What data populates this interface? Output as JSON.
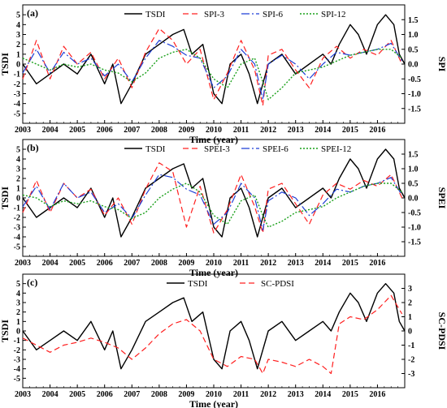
{
  "chart_data": [
    {
      "type": "line",
      "panel_label": "(a)",
      "xlabel": "Time (year)",
      "ylabel_left": "TSDI",
      "ylabel_right": "SPI",
      "x_ticks": [
        "2003",
        "2004",
        "2005",
        "2006",
        "2007",
        "2008",
        "2009",
        "2010",
        "2011",
        "2012",
        "2013",
        "2014",
        "2015",
        "2016"
      ],
      "xlim": [
        2003,
        2017
      ],
      "ylim_left": [
        -6,
        6
      ],
      "ylim_right": [
        -2,
        2
      ],
      "y_left_ticks": [
        -5,
        -4,
        -3,
        -2,
        -1,
        0,
        1,
        2,
        3,
        4,
        5
      ],
      "y_right_ticks": [
        -1.5,
        -1.0,
        -0.5,
        0.0,
        0.5,
        1.0,
        1.5
      ],
      "y_right_tick_labels": [
        "-1.5",
        "-1.0",
        "-0.5",
        "0.0",
        "0.5",
        "1.0",
        "1.5"
      ],
      "legend_position": "top",
      "series": [
        {
          "name": "TSDI",
          "axis": "left",
          "color": "#000000",
          "dash": "",
          "width": 1.4,
          "x": [
            2003.0,
            2003.5,
            2004.0,
            2004.5,
            2005.0,
            2005.5,
            2006.0,
            2006.3,
            2006.6,
            2007.0,
            2007.5,
            2008.0,
            2008.5,
            2008.9,
            2009.2,
            2009.6,
            2010.0,
            2010.3,
            2010.6,
            2011.0,
            2011.3,
            2011.6,
            2012.0,
            2012.5,
            2013.0,
            2013.5,
            2014.0,
            2014.3,
            2014.6,
            2015.0,
            2015.3,
            2015.6,
            2016.0,
            2016.3,
            2016.6,
            2016.8,
            2017.0
          ],
          "values": [
            0,
            -2,
            -1,
            0,
            -1,
            1,
            -2,
            0,
            -4,
            -2,
            1,
            2,
            3,
            3.5,
            1,
            2,
            -3,
            -4,
            0,
            1,
            -1,
            -4,
            0,
            1,
            -1,
            0,
            1,
            0,
            2,
            4,
            3,
            1,
            4,
            5,
            4,
            1,
            0
          ]
        },
        {
          "name": "SPI-3",
          "axis": "right",
          "color": "#ff2020",
          "dash": "7,4",
          "width": 1.2,
          "x": [
            2003.0,
            2003.5,
            2004.0,
            2004.5,
            2005.0,
            2005.5,
            2006.0,
            2006.5,
            2007.0,
            2007.5,
            2008.0,
            2008.5,
            2009.0,
            2009.5,
            2010.0,
            2010.5,
            2011.0,
            2011.5,
            2011.8,
            2012.0,
            2012.5,
            2013.0,
            2013.5,
            2014.0,
            2014.5,
            2015.0,
            2015.5,
            2016.0,
            2016.5,
            2016.9
          ],
          "values": [
            -0.5,
            0.8,
            -0.5,
            0.6,
            0.0,
            0.4,
            -0.5,
            0.2,
            -0.8,
            0.4,
            1.2,
            0.8,
            0.0,
            0.5,
            -1.2,
            -0.3,
            0.8,
            -0.2,
            -1.4,
            0.3,
            0.5,
            -0.2,
            -0.8,
            0.2,
            0.6,
            0.2,
            0.5,
            0.3,
            0.8,
            0.0
          ]
        },
        {
          "name": "SPI-6",
          "axis": "right",
          "color": "#1f3fd6",
          "dash": "10,3,2,3",
          "width": 1.2,
          "x": [
            2003.0,
            2003.5,
            2004.0,
            2004.5,
            2005.0,
            2005.5,
            2006.0,
            2006.5,
            2007.0,
            2007.5,
            2008.0,
            2008.5,
            2009.0,
            2009.5,
            2010.0,
            2010.5,
            2011.0,
            2011.5,
            2011.8,
            2012.0,
            2012.5,
            2013.0,
            2013.5,
            2014.0,
            2014.5,
            2015.0,
            2015.5,
            2016.0,
            2016.5,
            2016.9
          ],
          "values": [
            -0.3,
            0.5,
            -0.3,
            0.4,
            0.0,
            0.2,
            -0.4,
            0.0,
            -0.6,
            0.2,
            0.8,
            0.6,
            0.3,
            0.2,
            -0.8,
            -0.4,
            0.5,
            0.0,
            -1.2,
            0.0,
            0.3,
            0.0,
            -0.5,
            0.0,
            0.4,
            0.3,
            0.4,
            0.5,
            0.7,
            0.1
          ]
        },
        {
          "name": "SPI-12",
          "axis": "right",
          "color": "#1aa01a",
          "dash": "2,2",
          "width": 1.4,
          "x": [
            2003.0,
            2003.5,
            2004.0,
            2004.5,
            2005.0,
            2005.5,
            2006.0,
            2006.5,
            2007.0,
            2007.5,
            2008.0,
            2008.5,
            2009.0,
            2009.5,
            2010.0,
            2010.5,
            2011.0,
            2011.5,
            2011.8,
            2012.0,
            2012.5,
            2013.0,
            2013.5,
            2014.0,
            2014.5,
            2015.0,
            2015.5,
            2016.0,
            2016.5,
            2016.9
          ],
          "values": [
            0.2,
            0.0,
            -0.2,
            0.0,
            -0.1,
            0.0,
            -0.2,
            -0.3,
            -0.6,
            -0.3,
            0.2,
            0.4,
            0.5,
            0.2,
            -0.5,
            -0.8,
            0.0,
            0.2,
            -0.6,
            -1.2,
            -0.8,
            -0.3,
            -0.2,
            -0.1,
            0.1,
            0.3,
            0.4,
            0.5,
            0.5,
            0.2
          ]
        }
      ]
    },
    {
      "type": "line",
      "panel_label": "(b)",
      "xlabel": "Time (year)",
      "ylabel_left": "TSDI",
      "ylabel_right": "SPEI",
      "x_ticks": [
        "2003",
        "2004",
        "2005",
        "2006",
        "2007",
        "2008",
        "2009",
        "2010",
        "2011",
        "2012",
        "2013",
        "2014",
        "2015",
        "2016"
      ],
      "xlim": [
        2003,
        2017
      ],
      "ylim_left": [
        -6,
        6
      ],
      "ylim_right": [
        -2,
        2
      ],
      "y_left_ticks": [
        -5,
        -4,
        -3,
        -2,
        -1,
        0,
        1,
        2,
        3,
        4,
        5
      ],
      "y_right_ticks": [
        -1.5,
        -1.0,
        -0.5,
        0.0,
        0.5,
        1.0,
        1.5
      ],
      "y_right_tick_labels": [
        "-1.5",
        "-1.0",
        "-0.5",
        "0.0",
        "0.5",
        "1.0",
        "1.5"
      ],
      "legend_position": "top",
      "series": [
        {
          "name": "TSDI",
          "axis": "left",
          "color": "#000000",
          "dash": "",
          "width": 1.4,
          "x": [
            2003.0,
            2003.5,
            2004.0,
            2004.5,
            2005.0,
            2005.5,
            2006.0,
            2006.3,
            2006.6,
            2007.0,
            2007.5,
            2008.0,
            2008.5,
            2008.9,
            2009.2,
            2009.6,
            2010.0,
            2010.3,
            2010.6,
            2011.0,
            2011.3,
            2011.6,
            2012.0,
            2012.5,
            2013.0,
            2013.5,
            2014.0,
            2014.3,
            2014.6,
            2015.0,
            2015.3,
            2015.6,
            2016.0,
            2016.3,
            2016.6,
            2016.8,
            2017.0
          ],
          "values": [
            0,
            -2,
            -1,
            0,
            -1,
            1,
            -2,
            0,
            -4,
            -2,
            1,
            2,
            3,
            3.5,
            1,
            2,
            -3,
            -4,
            0,
            1,
            -1,
            -4,
            0,
            1,
            -1,
            0,
            1,
            0,
            2,
            4,
            3,
            1,
            4,
            5,
            4,
            1,
            0
          ]
        },
        {
          "name": "SPEI-3",
          "axis": "right",
          "color": "#ff2020",
          "dash": "7,4",
          "width": 1.2,
          "x": [
            2003.0,
            2003.5,
            2004.0,
            2004.5,
            2005.0,
            2005.5,
            2006.0,
            2006.5,
            2007.0,
            2007.5,
            2008.0,
            2008.5,
            2009.0,
            2009.5,
            2010.0,
            2010.5,
            2011.0,
            2011.5,
            2011.8,
            2012.0,
            2012.5,
            2013.0,
            2013.5,
            2014.0,
            2014.5,
            2015.0,
            2015.5,
            2016.0,
            2016.5,
            2016.9
          ],
          "values": [
            -0.5,
            0.6,
            -0.5,
            0.5,
            0.0,
            0.3,
            -0.6,
            0.0,
            -0.9,
            0.3,
            1.2,
            0.9,
            -1.0,
            0.4,
            -1.2,
            -0.4,
            0.8,
            -0.3,
            -1.2,
            0.3,
            0.5,
            -0.2,
            -0.9,
            0.1,
            0.5,
            0.3,
            0.6,
            0.4,
            0.8,
            0.0
          ]
        },
        {
          "name": "SPEI-6",
          "axis": "right",
          "color": "#1f3fd6",
          "dash": "10,3,2,3",
          "width": 1.2,
          "x": [
            2003.0,
            2003.5,
            2004.0,
            2004.5,
            2005.0,
            2005.5,
            2006.0,
            2006.5,
            2007.0,
            2007.5,
            2008.0,
            2008.5,
            2009.0,
            2009.5,
            2010.0,
            2010.5,
            2011.0,
            2011.5,
            2011.8,
            2012.0,
            2012.5,
            2013.0,
            2013.5,
            2014.0,
            2014.5,
            2015.0,
            2015.5,
            2016.0,
            2016.5,
            2016.9
          ],
          "values": [
            -0.3,
            0.4,
            -0.4,
            0.5,
            0.0,
            0.2,
            -0.5,
            -0.2,
            -0.7,
            0.1,
            0.8,
            0.7,
            0.3,
            0.1,
            -0.9,
            -0.5,
            0.5,
            0.0,
            -1.1,
            -0.1,
            0.2,
            0.0,
            -0.6,
            -0.2,
            0.3,
            0.2,
            0.4,
            0.5,
            0.7,
            0.1
          ]
        },
        {
          "name": "SPEI-12",
          "axis": "right",
          "color": "#1aa01a",
          "dash": "2,2",
          "width": 1.4,
          "x": [
            2003.0,
            2003.5,
            2004.0,
            2004.5,
            2005.0,
            2005.5,
            2006.0,
            2006.5,
            2007.0,
            2007.5,
            2008.0,
            2008.5,
            2009.0,
            2009.5,
            2010.0,
            2010.5,
            2011.0,
            2011.5,
            2011.8,
            2012.0,
            2012.5,
            2013.0,
            2013.5,
            2014.0,
            2014.5,
            2015.0,
            2015.5,
            2016.0,
            2016.5,
            2016.9
          ],
          "values": [
            0.1,
            0.0,
            -0.3,
            -0.1,
            -0.2,
            -0.1,
            -0.3,
            -0.4,
            -0.7,
            -0.5,
            0.0,
            0.3,
            0.5,
            0.2,
            -0.6,
            -0.9,
            -0.1,
            0.1,
            -0.6,
            -1.0,
            -0.8,
            -0.5,
            -0.4,
            -0.3,
            0.0,
            0.2,
            0.4,
            0.5,
            0.5,
            0.2
          ]
        }
      ]
    },
    {
      "type": "line",
      "panel_label": "(c)",
      "xlabel": "Time (year)",
      "ylabel_left": "TSDI",
      "ylabel_right": "SC-PDSI",
      "x_ticks": [
        "2003",
        "2004",
        "2005",
        "2006",
        "2007",
        "2008",
        "2009",
        "2010",
        "2011",
        "2012",
        "2013",
        "2014",
        "2015",
        "2016"
      ],
      "xlim": [
        2003,
        2017
      ],
      "ylim_left": [
        -6,
        6
      ],
      "ylim_right": [
        -4,
        4
      ],
      "y_left_ticks": [
        -5,
        -4,
        -3,
        -2,
        -1,
        0,
        1,
        2,
        3,
        4,
        5
      ],
      "y_right_ticks": [
        -3,
        -2,
        -1,
        0,
        1,
        2,
        3
      ],
      "y_right_tick_labels": [
        "-3",
        "-2",
        "-1",
        "0",
        "1",
        "2",
        "3"
      ],
      "legend_position": "top",
      "series": [
        {
          "name": "TSDI",
          "axis": "left",
          "color": "#000000",
          "dash": "",
          "width": 1.4,
          "x": [
            2003.0,
            2003.5,
            2004.0,
            2004.5,
            2005.0,
            2005.5,
            2006.0,
            2006.3,
            2006.6,
            2007.0,
            2007.5,
            2008.0,
            2008.5,
            2008.9,
            2009.2,
            2009.6,
            2010.0,
            2010.3,
            2010.6,
            2011.0,
            2011.3,
            2011.6,
            2012.0,
            2012.5,
            2013.0,
            2013.5,
            2014.0,
            2014.3,
            2014.6,
            2015.0,
            2015.3,
            2015.6,
            2016.0,
            2016.3,
            2016.6,
            2016.8,
            2017.0
          ],
          "values": [
            0,
            -2,
            -1,
            0,
            -1,
            1,
            -2,
            0,
            -4,
            -2,
            1,
            2,
            3,
            3.5,
            1,
            2,
            -3,
            -4,
            0,
            1,
            -1,
            -4,
            0,
            1,
            -1,
            0,
            1,
            0,
            2,
            4,
            3,
            1,
            4,
            5,
            4,
            1,
            0
          ]
        },
        {
          "name": "SC-PDSI",
          "axis": "right",
          "color": "#ff2020",
          "dash": "7,4",
          "width": 1.2,
          "x": [
            2003.0,
            2003.5,
            2004.0,
            2004.5,
            2005.0,
            2005.5,
            2006.0,
            2006.5,
            2007.0,
            2007.5,
            2008.0,
            2008.5,
            2009.0,
            2009.5,
            2010.0,
            2010.5,
            2011.0,
            2011.5,
            2011.8,
            2012.0,
            2012.5,
            2013.0,
            2013.5,
            2014.0,
            2014.3,
            2014.6,
            2015.0,
            2015.5,
            2016.0,
            2016.5,
            2016.9
          ],
          "values": [
            -0.5,
            -1.0,
            -1.5,
            -1.0,
            -0.8,
            -0.5,
            -0.8,
            -1.2,
            -2.0,
            -1.2,
            -0.2,
            0.5,
            0.8,
            0.0,
            -2.0,
            -2.5,
            -1.8,
            -2.0,
            -3.0,
            -2.0,
            -2.2,
            -2.5,
            -2.0,
            -2.5,
            -3.0,
            0.5,
            1.0,
            0.8,
            1.5,
            2.5,
            1.2
          ]
        }
      ]
    }
  ]
}
